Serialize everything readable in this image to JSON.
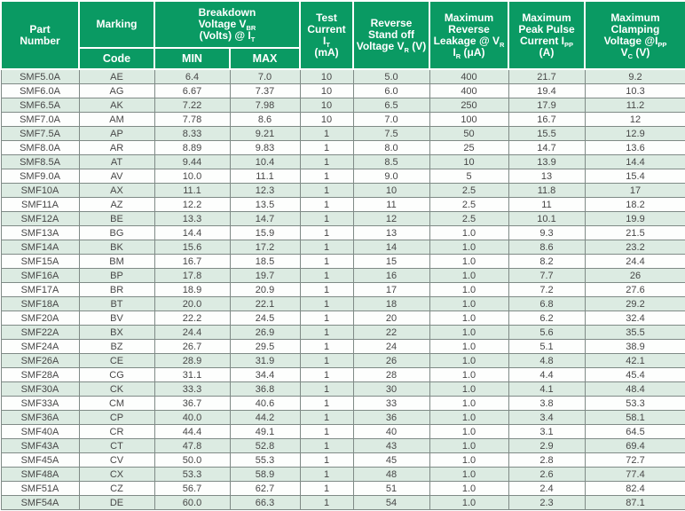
{
  "colors": {
    "header_bg": "#0a9a63",
    "header_text": "#ffffff",
    "row_stripe_bg": "#dcebe2",
    "row_plain_bg": "#fdfefd",
    "grid_border": "#7f8a86",
    "data_text": "#474747"
  },
  "headers": {
    "part_number": [
      [
        "Part"
      ],
      [
        "Number"
      ]
    ],
    "marking": [
      [
        "Marking"
      ]
    ],
    "code": [
      [
        "Code"
      ]
    ],
    "breakdown": [
      [
        "Breakdown"
      ],
      [
        "Voltage V",
        {
          "sub": "BR"
        }
      ],
      [
        "(Volts) @ I",
        {
          "sub": "T"
        }
      ]
    ],
    "min": [
      [
        "MIN"
      ]
    ],
    "max": [
      [
        "MAX"
      ]
    ],
    "test_current": [
      [
        "Test"
      ],
      [
        "Current"
      ],
      [
        "I",
        {
          "sub": "T"
        }
      ],
      [
        "(mA)"
      ]
    ],
    "reverse_standoff": [
      [
        "Reverse"
      ],
      [
        "Stand off"
      ],
      [
        "Voltage V",
        {
          "sub": "R"
        },
        " (V)"
      ]
    ],
    "max_reverse_leakage": [
      [
        "Maximum"
      ],
      [
        "Reverse"
      ],
      [
        "Leakage @ V",
        {
          "sub": "R"
        }
      ],
      [
        "I",
        {
          "sub": "R"
        },
        " (μA)"
      ]
    ],
    "max_peak_pulse": [
      [
        "Maximum"
      ],
      [
        "Peak Pulse"
      ],
      [
        "Current I",
        {
          "sub": "PP"
        }
      ],
      [
        "(A)"
      ]
    ],
    "max_clamping": [
      [
        "Maximum"
      ],
      [
        "Clamping"
      ],
      [
        "Voltage @I",
        {
          "sub": "PP"
        }
      ],
      [
        "V",
        {
          "sub": "C"
        },
        " (V)"
      ]
    ]
  },
  "table": {
    "column_ids": [
      "part-number",
      "marking-code",
      "vbr-min",
      "vbr-max",
      "test-current-ma",
      "vr-v",
      "ir-ua",
      "ipp-a",
      "vc-v"
    ],
    "rows": [
      [
        "SMF5.0A",
        "AE",
        "6.4",
        "7.0",
        "10",
        "5.0",
        "400",
        "21.7",
        "9.2"
      ],
      [
        "SMF6.0A",
        "AG",
        "6.67",
        "7.37",
        "10",
        "6.0",
        "400",
        "19.4",
        "10.3"
      ],
      [
        "SMF6.5A",
        "AK",
        "7.22",
        "7.98",
        "10",
        "6.5",
        "250",
        "17.9",
        "11.2"
      ],
      [
        "SMF7.0A",
        "AM",
        "7.78",
        "8.6",
        "10",
        "7.0",
        "100",
        "16.7",
        "12"
      ],
      [
        "SMF7.5A",
        "AP",
        "8.33",
        "9.21",
        "1",
        "7.5",
        "50",
        "15.5",
        "12.9"
      ],
      [
        "SMF8.0A",
        "AR",
        "8.89",
        "9.83",
        "1",
        "8.0",
        "25",
        "14.7",
        "13.6"
      ],
      [
        "SMF8.5A",
        "AT",
        "9.44",
        "10.4",
        "1",
        "8.5",
        "10",
        "13.9",
        "14.4"
      ],
      [
        "SMF9.0A",
        "AV",
        "10.0",
        "11.1",
        "1",
        "9.0",
        "5",
        "13",
        "15.4"
      ],
      [
        "SMF10A",
        "AX",
        "11.1",
        "12.3",
        "1",
        "10",
        "2.5",
        "11.8",
        "17"
      ],
      [
        "SMF11A",
        "AZ",
        "12.2",
        "13.5",
        "1",
        "11",
        "2.5",
        "11",
        "18.2"
      ],
      [
        "SMF12A",
        "BE",
        "13.3",
        "14.7",
        "1",
        "12",
        "2.5",
        "10.1",
        "19.9"
      ],
      [
        "SMF13A",
        "BG",
        "14.4",
        "15.9",
        "1",
        "13",
        "1.0",
        "9.3",
        "21.5"
      ],
      [
        "SMF14A",
        "BK",
        "15.6",
        "17.2",
        "1",
        "14",
        "1.0",
        "8.6",
        "23.2"
      ],
      [
        "SMF15A",
        "BM",
        "16.7",
        "18.5",
        "1",
        "15",
        "1.0",
        "8.2",
        "24.4"
      ],
      [
        "SMF16A",
        "BP",
        "17.8",
        "19.7",
        "1",
        "16",
        "1.0",
        "7.7",
        "26"
      ],
      [
        "SMF17A",
        "BR",
        "18.9",
        "20.9",
        "1",
        "17",
        "1.0",
        "7.2",
        "27.6"
      ],
      [
        "SMF18A",
        "BT",
        "20.0",
        "22.1",
        "1",
        "18",
        "1.0",
        "6.8",
        "29.2"
      ],
      [
        "SMF20A",
        "BV",
        "22.2",
        "24.5",
        "1",
        "20",
        "1.0",
        "6.2",
        "32.4"
      ],
      [
        "SMF22A",
        "BX",
        "24.4",
        "26.9",
        "1",
        "22",
        "1.0",
        "5.6",
        "35.5"
      ],
      [
        "SMF24A",
        "BZ",
        "26.7",
        "29.5",
        "1",
        "24",
        "1.0",
        "5.1",
        "38.9"
      ],
      [
        "SMF26A",
        "CE",
        "28.9",
        "31.9",
        "1",
        "26",
        "1.0",
        "4.8",
        "42.1"
      ],
      [
        "SMF28A",
        "CG",
        "31.1",
        "34.4",
        "1",
        "28",
        "1.0",
        "4.4",
        "45.4"
      ],
      [
        "SMF30A",
        "CK",
        "33.3",
        "36.8",
        "1",
        "30",
        "1.0",
        "4.1",
        "48.4"
      ],
      [
        "SMF33A",
        "CM",
        "36.7",
        "40.6",
        "1",
        "33",
        "1.0",
        "3.8",
        "53.3"
      ],
      [
        "SMF36A",
        "CP",
        "40.0",
        "44.2",
        "1",
        "36",
        "1.0",
        "3.4",
        "58.1"
      ],
      [
        "SMF40A",
        "CR",
        "44.4",
        "49.1",
        "1",
        "40",
        "1.0",
        "3.1",
        "64.5"
      ],
      [
        "SMF43A",
        "CT",
        "47.8",
        "52.8",
        "1",
        "43",
        "1.0",
        "2.9",
        "69.4"
      ],
      [
        "SMF45A",
        "CV",
        "50.0",
        "55.3",
        "1",
        "45",
        "1.0",
        "2.8",
        "72.7"
      ],
      [
        "SMF48A",
        "CX",
        "53.3",
        "58.9",
        "1",
        "48",
        "1.0",
        "2.6",
        "77.4"
      ],
      [
        "SMF51A",
        "CZ",
        "56.7",
        "62.7",
        "1",
        "51",
        "1.0",
        "2.4",
        "82.4"
      ],
      [
        "SMF54A",
        "DE",
        "60.0",
        "66.3",
        "1",
        "54",
        "1.0",
        "2.3",
        "87.1"
      ]
    ]
  }
}
